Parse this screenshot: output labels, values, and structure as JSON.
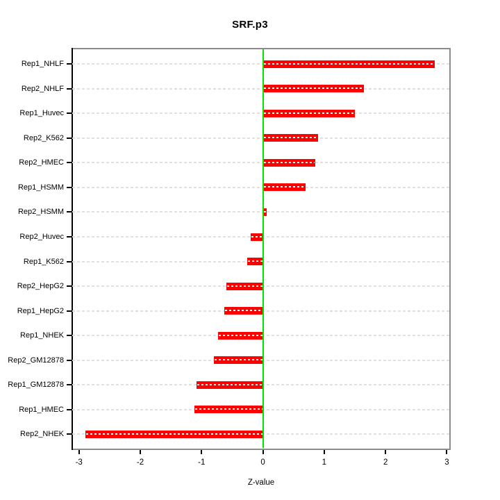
{
  "chart_data": {
    "type": "bar",
    "orientation": "horizontal",
    "title": "SRF.p3",
    "xlabel": "Z-value",
    "categories": [
      "Rep1_NHLF",
      "Rep2_NHLF",
      "Rep1_Huvec",
      "Rep2_K562",
      "Rep2_HMEC",
      "Rep1_HSMM",
      "Rep2_HSMM",
      "Rep2_Huvec",
      "Rep1_K562",
      "Rep2_HepG2",
      "Rep1_HepG2",
      "Rep1_NHEK",
      "Rep2_GM12878",
      "Rep1_GM12878",
      "Rep1_HMEC",
      "Rep2_NHEK"
    ],
    "values": [
      2.8,
      1.65,
      1.5,
      0.9,
      0.85,
      0.7,
      0.06,
      -0.2,
      -0.26,
      -0.6,
      -0.63,
      -0.73,
      -0.8,
      -1.08,
      -1.12,
      -2.9
    ],
    "xticks": [
      "-3",
      "-2",
      "-1",
      "0",
      "1",
      "2",
      "3"
    ],
    "xtick_values": [
      -3,
      -2,
      -1,
      0,
      1,
      2,
      3
    ],
    "xlim": [
      -3.11,
      3.04
    ],
    "grid": true,
    "legend": false,
    "colors": {
      "bar": "#FF0000",
      "bar_dash": "#FFFFFF",
      "zero_line": "#00E500",
      "gridline": "#E0E0E0",
      "box_border": "#8C8C8C",
      "y_axis": "#000000",
      "tick": "#000000",
      "text": "#000000"
    }
  }
}
